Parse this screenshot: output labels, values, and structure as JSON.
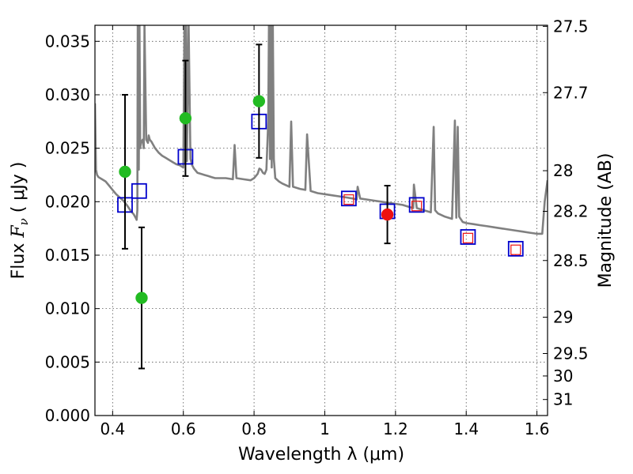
{
  "chart_data": {
    "type": "scatter",
    "xlabel": "Wavelength  λ (μm)",
    "ylabel": "Flux  F_ν  ( μJy )",
    "ylabel_prefix": "Flux  ",
    "ylabel_symbol": "F",
    "ylabel_subscript": "ν",
    "ylabel_suffix": "  ( μJy )",
    "ylabel_right": "Magnitude (AB)",
    "xlim": [
      0.35,
      1.63
    ],
    "ylim": [
      0.0,
      0.0365
    ],
    "grid": true,
    "x_ticks": [
      0.4,
      0.6,
      0.8,
      1.0,
      1.2,
      1.4,
      1.6
    ],
    "x_tick_labels": [
      "0.4",
      "0.6",
      "0.8",
      "1",
      "1.2",
      "1.4",
      "1.6"
    ],
    "y_ticks": [
      0.0,
      0.005,
      0.01,
      0.015,
      0.02,
      0.025,
      0.03,
      0.035
    ],
    "y_tick_labels": [
      "0.000",
      "0.005",
      "0.010",
      "0.015",
      "0.020",
      "0.025",
      "0.030",
      "0.035"
    ],
    "right_ticks": [
      {
        "label": "27.5",
        "flux": 0.0364
      },
      {
        "label": "27.7",
        "flux": 0.0302
      },
      {
        "label": "28",
        "flux": 0.0229
      },
      {
        "label": "28.2",
        "flux": 0.0191
      },
      {
        "label": "28.5",
        "flux": 0.0145
      },
      {
        "label": "29",
        "flux": 0.0092
      },
      {
        "label": "29.5",
        "flux": 0.0058
      },
      {
        "label": "30",
        "flux": 0.0037
      },
      {
        "label": "31",
        "flux": 0.0015
      }
    ],
    "series": [
      {
        "name": "observed flux (green)",
        "color": "#22bb22",
        "x": [
          0.435,
          0.482,
          0.606,
          0.814
        ],
        "y": [
          0.0228,
          0.011,
          0.0278,
          0.0294
        ],
        "err": [
          0.0072,
          0.0066,
          0.0054,
          0.0053
        ]
      },
      {
        "name": "observed flux (red)",
        "color": "#ee1111",
        "x": [
          1.177
        ],
        "y": [
          0.0188
        ],
        "err": [
          0.0027
        ]
      },
      {
        "name": "model photometry (blue squares)",
        "color": "#0000cc",
        "x": [
          0.435,
          0.475,
          0.606,
          0.814,
          1.068,
          1.177,
          1.26,
          1.405,
          1.54
        ],
        "y": [
          0.0197,
          0.021,
          0.0242,
          0.0275,
          0.0203,
          0.0191,
          0.0197,
          0.0167,
          0.0156
        ]
      },
      {
        "name": "model photometry (red squares)",
        "color": "#ee1111",
        "x": [
          1.068,
          1.26,
          1.405,
          1.54
        ],
        "y": [
          0.0202,
          0.0196,
          0.0166,
          0.0155
        ]
      }
    ],
    "spectrum": {
      "name": "model spectrum",
      "color": "#808080",
      "x": [
        0.35,
        0.353,
        0.356,
        0.36,
        0.37,
        0.38,
        0.39,
        0.4,
        0.41,
        0.42,
        0.43,
        0.44,
        0.45,
        0.455,
        0.46,
        0.465,
        0.468,
        0.47,
        0.471,
        0.474,
        0.476,
        0.478,
        0.48,
        0.485,
        0.488,
        0.49,
        0.495,
        0.5,
        0.502,
        0.505,
        0.51,
        0.52,
        0.53,
        0.54,
        0.55,
        0.56,
        0.57,
        0.58,
        0.59,
        0.6,
        0.603,
        0.605,
        0.608,
        0.61,
        0.615,
        0.62,
        0.625,
        0.63,
        0.635,
        0.64,
        0.65,
        0.66,
        0.67,
        0.68,
        0.69,
        0.7,
        0.72,
        0.74,
        0.745,
        0.75,
        0.77,
        0.79,
        0.8,
        0.81,
        0.815,
        0.82,
        0.825,
        0.83,
        0.835,
        0.84,
        0.842,
        0.845,
        0.848,
        0.85,
        0.853,
        0.856,
        0.86,
        0.87,
        0.88,
        0.9,
        0.905,
        0.91,
        0.93,
        0.945,
        0.95,
        0.96,
        0.98,
        1.0,
        1.02,
        1.04,
        1.06,
        1.08,
        1.09,
        1.093,
        1.1,
        1.12,
        1.14,
        1.16,
        1.18,
        1.2,
        1.22,
        1.24,
        1.25,
        1.252,
        1.26,
        1.28,
        1.3,
        1.308,
        1.312,
        1.32,
        1.34,
        1.36,
        1.368,
        1.372,
        1.376,
        1.38,
        1.39,
        1.4,
        1.42,
        1.44,
        1.46,
        1.48,
        1.5,
        1.52,
        1.54,
        1.56,
        1.58,
        1.6,
        1.615,
        1.622,
        1.63
      ],
      "y": [
        0.0292,
        0.023,
        0.0225,
        0.0223,
        0.0221,
        0.0219,
        0.0215,
        0.0211,
        0.0207,
        0.0204,
        0.0201,
        0.0197,
        0.0192,
        0.019,
        0.0188,
        0.0185,
        0.0183,
        0.0192,
        0.0365,
        0.023,
        0.0365,
        0.025,
        0.0255,
        0.0258,
        0.025,
        0.0365,
        0.0258,
        0.0255,
        0.0262,
        0.0258,
        0.0256,
        0.025,
        0.0246,
        0.0243,
        0.0241,
        0.0239,
        0.0237,
        0.0235,
        0.0234,
        0.0232,
        0.0365,
        0.0236,
        0.0365,
        0.0238,
        0.0365,
        0.024,
        0.0234,
        0.0231,
        0.0229,
        0.0227,
        0.0226,
        0.0225,
        0.0224,
        0.0223,
        0.0222,
        0.0222,
        0.0222,
        0.0221,
        0.0253,
        0.0222,
        0.0221,
        0.022,
        0.0222,
        0.0226,
        0.0231,
        0.023,
        0.0227,
        0.0226,
        0.023,
        0.0275,
        0.0365,
        0.024,
        0.0365,
        0.0232,
        0.0365,
        0.024,
        0.0222,
        0.0219,
        0.0217,
        0.0214,
        0.0275,
        0.0214,
        0.0212,
        0.0211,
        0.0263,
        0.021,
        0.0208,
        0.0207,
        0.0206,
        0.0205,
        0.0204,
        0.0203,
        0.0202,
        0.0214,
        0.0203,
        0.0202,
        0.0201,
        0.02,
        0.0199,
        0.0198,
        0.0197,
        0.0195,
        0.0194,
        0.0216,
        0.0194,
        0.0192,
        0.019,
        0.027,
        0.0192,
        0.0189,
        0.0186,
        0.0184,
        0.0276,
        0.0185,
        0.027,
        0.0186,
        0.0181,
        0.018,
        0.0179,
        0.0178,
        0.0177,
        0.0176,
        0.0175,
        0.0174,
        0.0173,
        0.0172,
        0.0171,
        0.017,
        0.017,
        0.02,
        0.022
      ]
    }
  }
}
